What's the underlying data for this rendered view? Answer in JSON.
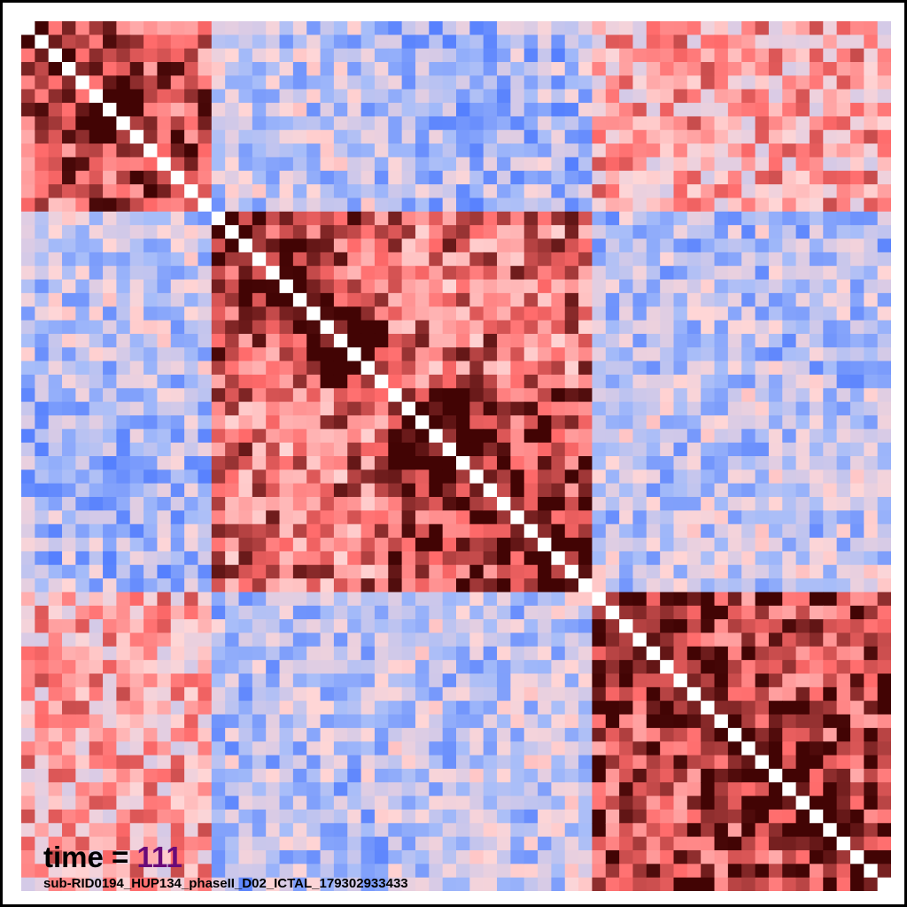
{
  "chart_data": {
    "type": "heatmap",
    "size": 64,
    "clusters": [
      {
        "start": 0,
        "end": 14
      },
      {
        "start": 14,
        "end": 27
      },
      {
        "start": 27,
        "end": 42
      },
      {
        "start": 42,
        "end": 64
      }
    ],
    "block_strength": [
      [
        0.55,
        -0.35,
        -0.45,
        0.2
      ],
      [
        -0.35,
        0.6,
        0.45,
        -0.4
      ],
      [
        -0.45,
        0.45,
        0.7,
        -0.35
      ],
      [
        0.2,
        -0.4,
        -0.35,
        0.65
      ]
    ],
    "diagonal_value": 1.0,
    "color_scale": {
      "min": -1,
      "max": 1,
      "colors": [
        "#3f6fff",
        "#a7bdf9",
        "#ffd6d6",
        "#ff6a6a",
        "#3a0000"
      ]
    },
    "diagonal_color": "#ffffff"
  },
  "caption": {
    "time_label": "time =",
    "time_value": "111",
    "subject": "sub-RID0194_HUP134_phaseII_D02_ICTAL_179302933433"
  }
}
